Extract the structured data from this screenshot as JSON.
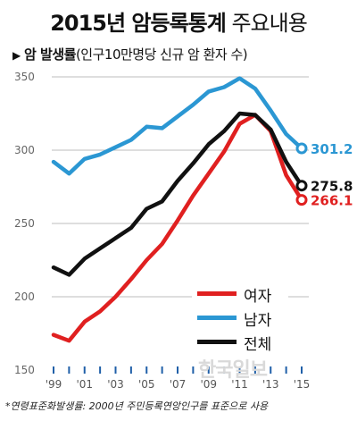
{
  "header": {
    "title_bold": "2015년 암등록통계",
    "title_light": "주요내용",
    "subtitle_prefix": "▶",
    "subtitle_head": "암 발생률",
    "subtitle_detail": "(인구10만명당 신규 암 환자 수)"
  },
  "footnote": "*연령표준화발생률: 2000년 주민등록연앙인구를 표준으로 사용",
  "watermark": "한국일보",
  "chart_data": {
    "type": "line",
    "ylim": [
      150,
      350
    ],
    "y_ticks": [
      150,
      200,
      250,
      300,
      350
    ],
    "x": [
      1999,
      2000,
      2001,
      2002,
      2003,
      2004,
      2005,
      2006,
      2007,
      2008,
      2009,
      2010,
      2011,
      2012,
      2013,
      2014,
      2015
    ],
    "x_tick_labels": [
      "'99",
      "'01",
      "'03",
      "'05",
      "'07",
      "'09",
      "'11",
      "'13",
      "'15"
    ],
    "x_tick_years": [
      1999,
      2001,
      2003,
      2005,
      2007,
      2009,
      2011,
      2013,
      2015
    ],
    "series": [
      {
        "name": "여자",
        "color": "#e02020",
        "values": [
          174,
          170,
          183,
          190,
          200,
          212,
          225,
          236,
          252,
          269,
          284,
          299,
          318,
          324,
          313,
          283,
          266.1
        ],
        "end_label": "266.1"
      },
      {
        "name": "남자",
        "color": "#2b97d3",
        "values": [
          292,
          284,
          294,
          297,
          302,
          307,
          316,
          315,
          323,
          331,
          340,
          343,
          349,
          342,
          327,
          311,
          301.2
        ],
        "end_label": "301.2"
      },
      {
        "name": "전체",
        "color": "#111111",
        "values": [
          220,
          215,
          226,
          233,
          240,
          247,
          260,
          265,
          279,
          291,
          304,
          313,
          325,
          324,
          314,
          292,
          275.8
        ],
        "end_label": "275.8"
      }
    ],
    "legend": {
      "placement": "bottom-right",
      "entries": [
        {
          "name": "여자",
          "color": "#e02020"
        },
        {
          "name": "남자",
          "color": "#2b97d3"
        },
        {
          "name": "전체",
          "color": "#111111"
        }
      ]
    },
    "grid": true
  }
}
